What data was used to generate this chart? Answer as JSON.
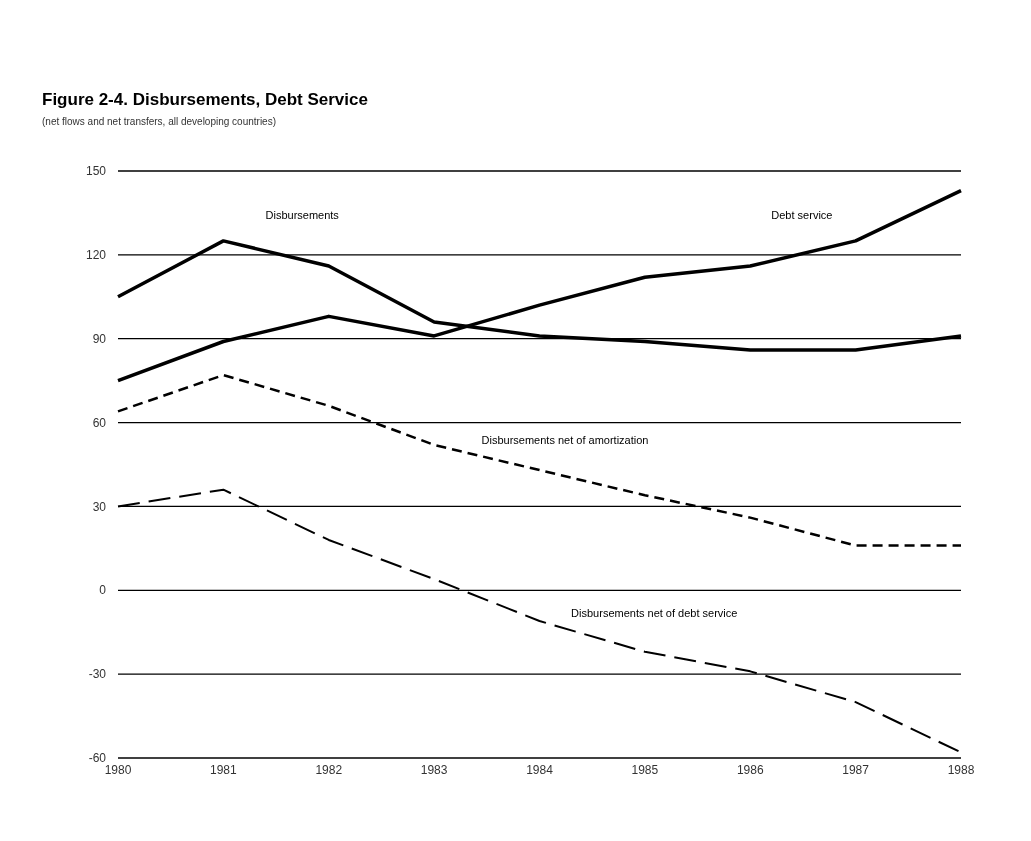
{
  "chart_data": {
    "type": "line",
    "title": "Figure 2-4. Disbursements, Debt Service",
    "subtitle": "(net flows and net transfers, all developing countries)",
    "x": [
      1980,
      1981,
      1982,
      1983,
      1984,
      1985,
      1986,
      1987,
      1988
    ],
    "xlim": [
      1980,
      1988
    ],
    "xticks": [
      1980,
      1981,
      1982,
      1983,
      1984,
      1985,
      1986,
      1987,
      1988
    ],
    "ylim": [
      -60,
      150
    ],
    "yticks": [
      -60,
      -30,
      0,
      30,
      60,
      90,
      120,
      150
    ],
    "grid": "y",
    "legend": false,
    "marker": "none",
    "series": [
      {
        "name": "Disbursements",
        "color": "#000000",
        "line_style": "solid",
        "values": [
          105,
          125,
          116,
          96,
          91,
          89,
          86,
          86,
          91
        ]
      },
      {
        "name": "Debt service",
        "color": "#000000",
        "line_style": "solid",
        "values": [
          75,
          89,
          98,
          91,
          102,
          112,
          116,
          125,
          143
        ]
      },
      {
        "name": "Disbursements net of amortization",
        "color": "#000000",
        "line_style": "dotted",
        "values": [
          64,
          77,
          66,
          52,
          43,
          34,
          26,
          16,
          16
        ]
      },
      {
        "name": "Disbursements net of debt service",
        "color": "#000000",
        "line_style": "dashed",
        "values": [
          30,
          36,
          18,
          4,
          -11,
          -22,
          -29,
          -40,
          -58
        ]
      }
    ]
  }
}
